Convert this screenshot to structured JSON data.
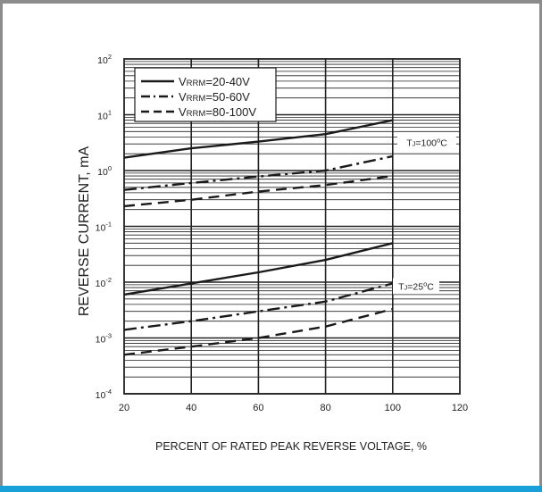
{
  "colors": {
    "frame": "#8c8c8c",
    "accent_bar": "#1aa0d8",
    "ink": "#1a1a1a",
    "grid": "#222222"
  },
  "chart_data": {
    "type": "line",
    "xlabel": "PERCENT OF RATED PEAK REVERSE VOLTAGE, %",
    "ylabel": "REVERSE CURRENT, mA",
    "xlim": [
      20,
      120
    ],
    "ylim": [
      0.0001,
      100
    ],
    "yscale": "log",
    "grid": true,
    "legend_position": "top-left",
    "x_ticks": [
      "20",
      "40",
      "60",
      "80",
      "100",
      "120"
    ],
    "y_ticks": [
      {
        "base": "10",
        "exp": "2",
        "value": 100
      },
      {
        "base": "10",
        "exp": "1",
        "value": 10
      },
      {
        "base": "10",
        "exp": "0",
        "value": 1
      },
      {
        "base": "10",
        "exp": "-1",
        "value": 0.1
      },
      {
        "base": "10",
        "exp": "-2",
        "value": 0.01
      },
      {
        "base": "10",
        "exp": "-3",
        "value": 0.001
      },
      {
        "base": "10",
        "exp": "-4",
        "value": 0.0001
      }
    ],
    "legend": [
      {
        "main": "V",
        "sub": "RRM",
        "rest": "=20-40V",
        "style": "solid"
      },
      {
        "main": "V",
        "sub": "RRM",
        "rest": "=50-60V",
        "style": "dashdot"
      },
      {
        "main": "V",
        "sub": "RRM",
        "rest": "=80-100V",
        "style": "dashed"
      }
    ],
    "annotations": [
      {
        "id": "tj100",
        "main": "T",
        "sub": "J",
        "mid": "=100",
        "sup": "o",
        "end": "C",
        "x": 100,
        "y": 3.2
      },
      {
        "id": "tj25",
        "main": "T",
        "sub": "J",
        "mid": "=25",
        "sup": "o",
        "end": "C",
        "x": 100,
        "y": 0.0085
      }
    ],
    "series": [
      {
        "style": "solid",
        "group": "TJ=100°C",
        "x": [
          20,
          40,
          60,
          80,
          100
        ],
        "y": [
          1.7,
          2.5,
          3.3,
          4.5,
          8.0
        ]
      },
      {
        "style": "dashdot",
        "group": "TJ=100°C",
        "x": [
          20,
          40,
          60,
          80,
          100
        ],
        "y": [
          0.45,
          0.6,
          0.78,
          1.0,
          1.8
        ]
      },
      {
        "style": "dashed",
        "group": "TJ=100°C",
        "x": [
          20,
          40,
          60,
          80,
          100
        ],
        "y": [
          0.23,
          0.3,
          0.42,
          0.55,
          0.8
        ]
      },
      {
        "style": "solid",
        "group": "TJ=25°C",
        "x": [
          20,
          40,
          60,
          80,
          100
        ],
        "y": [
          0.006,
          0.0095,
          0.015,
          0.025,
          0.05
        ]
      },
      {
        "style": "dashdot",
        "group": "TJ=25°C",
        "x": [
          20,
          40,
          60,
          80,
          100
        ],
        "y": [
          0.0014,
          0.002,
          0.003,
          0.0045,
          0.0095
        ]
      },
      {
        "style": "dashed",
        "group": "TJ=25°C",
        "x": [
          20,
          40,
          60,
          80,
          100
        ],
        "y": [
          0.0005,
          0.0007,
          0.001,
          0.0016,
          0.0033
        ]
      }
    ]
  }
}
